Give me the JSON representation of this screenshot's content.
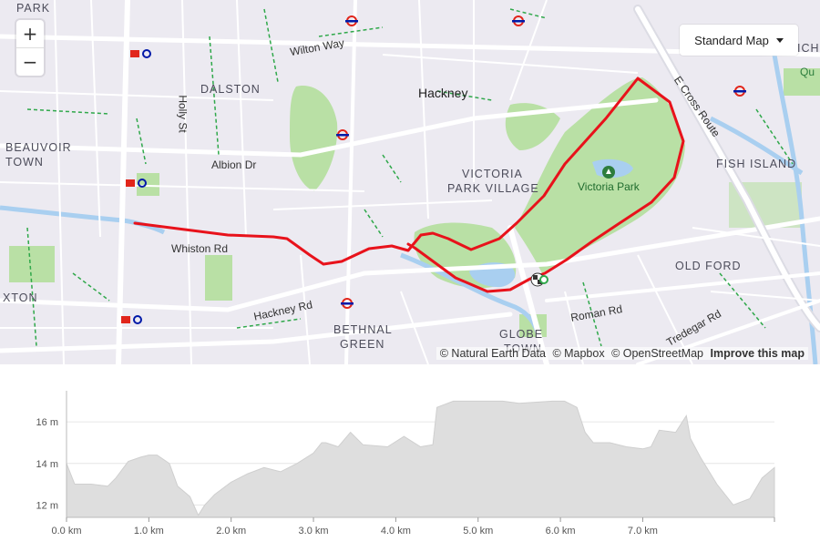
{
  "map": {
    "style_selector": {
      "label": "Standard Map"
    },
    "zoom": {
      "in": "+",
      "out": "−"
    },
    "attribution": {
      "natural_earth": "© Natural Earth Data",
      "mapbox": "© Mapbox",
      "osm": "© OpenStreetMap",
      "improve": "Improve this map"
    },
    "labels": {
      "dalston": "DALSTON",
      "hackney": "Hackney",
      "wilton_way": "Wilton Way",
      "holly_st": "Holly St",
      "de_beauvoir_1": "BEAUVOIR",
      "de_beauvoir_2": "TOWN",
      "park_top": "PARK",
      "albion_dr": "Albion Dr",
      "victoria_park_village_1": "VICTORIA",
      "victoria_park_village_2": "PARK VILLAGE",
      "victoria_park": "Victoria Park",
      "whiston_rd": "Whiston Rd",
      "hackney_rd": "Hackney Rd",
      "bethnal_1": "BETHNAL",
      "bethnal_2": "GREEN",
      "globe_1": "GLOBE",
      "globe_2": "TOWN",
      "roman_rd": "Roman Rd",
      "tredegar_rd": "Tredegar Rd",
      "old_ford": "OLD FORD",
      "fish_island": "FISH ISLAND",
      "e_cross_route": "E Cross Route",
      "hoxton_frag": "XTON",
      "ich_frag": "ICH",
      "qu_frag": "Qu"
    },
    "colors": {
      "route": "#e8121b",
      "park": "#b9e0a5",
      "water": "#a9cff0",
      "road": "#ffffff",
      "background": "#eceaf1"
    }
  },
  "chart_data": {
    "type": "area",
    "title": "",
    "xlabel": "",
    "ylabel": "",
    "x_ticks": [
      "0.0 km",
      "1.0 km",
      "2.0 km",
      "3.0 km",
      "4.0 km",
      "5.0 km",
      "6.0 km",
      "7.0 km"
    ],
    "y_ticks": [
      "12 m",
      "14 m",
      "16 m"
    ],
    "xlim": [
      0,
      8.6
    ],
    "ylim": [
      11.4,
      17.5
    ],
    "x": [
      0.0,
      0.1,
      0.3,
      0.5,
      0.6,
      0.75,
      0.9,
      1.0,
      1.1,
      1.25,
      1.35,
      1.5,
      1.6,
      1.68,
      1.8,
      2.0,
      2.2,
      2.4,
      2.6,
      2.8,
      3.0,
      3.1,
      3.15,
      3.3,
      3.45,
      3.6,
      3.9,
      4.1,
      4.3,
      4.45,
      4.5,
      4.7,
      5.0,
      5.3,
      5.5,
      5.9,
      6.05,
      6.2,
      6.3,
      6.4,
      6.6,
      6.8,
      7.0,
      7.1,
      7.2,
      7.4,
      7.53,
      7.58,
      7.7,
      7.9,
      8.1,
      8.3,
      8.45,
      8.6
    ],
    "values": [
      14.0,
      13.0,
      13.0,
      12.9,
      13.3,
      14.1,
      14.3,
      14.4,
      14.4,
      14.0,
      12.9,
      12.4,
      11.5,
      12.0,
      12.5,
      13.1,
      13.5,
      13.8,
      13.6,
      14.0,
      14.5,
      15.0,
      15.0,
      14.8,
      15.5,
      14.9,
      14.8,
      15.3,
      14.8,
      14.9,
      16.7,
      17.0,
      17.0,
      17.0,
      16.9,
      17.0,
      17.0,
      16.7,
      15.5,
      15.0,
      15.0,
      14.8,
      14.7,
      14.8,
      15.6,
      15.5,
      16.3,
      15.2,
      14.3,
      13.0,
      12.0,
      12.3,
      13.3,
      13.8
    ]
  }
}
